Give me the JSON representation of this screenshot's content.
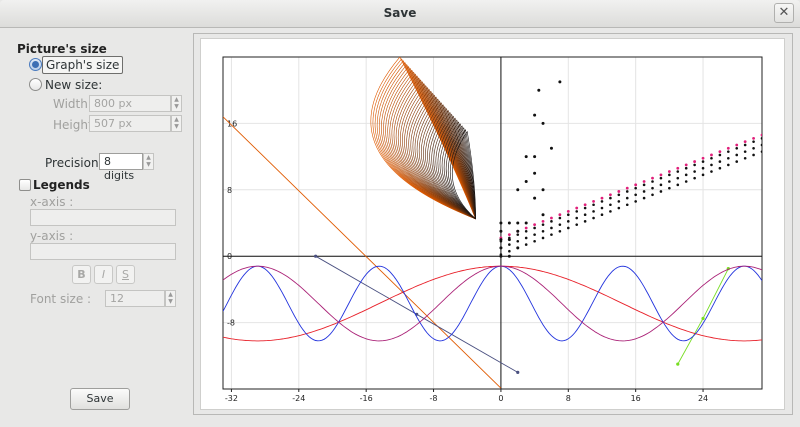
{
  "window": {
    "title": "Save",
    "close_glyph": "✕"
  },
  "picture_size": {
    "heading": "Picture's size",
    "graphs_size_label": "Graph's size",
    "new_size_label": "New size:",
    "width_label": "Width:",
    "width_value": "800 px",
    "height_label": "Height:",
    "height_value": "507 px"
  },
  "precision": {
    "label": "Precision :",
    "value": "8 digits"
  },
  "legends": {
    "label": "Legends",
    "x_axis_label": "x-axis :",
    "x_axis_value": "",
    "y_axis_label": "y-axis :",
    "y_axis_value": "",
    "bold_label": "B",
    "italic_label": "I",
    "underline_label": "S",
    "font_size_label": "Font size :",
    "font_size_value": "12"
  },
  "save_button_label": "Save",
  "colors": {
    "accent": "#3c6eb4",
    "orange": "#e05a00",
    "red": "#e8212a",
    "blue": "#2233dd",
    "magenta": "#aa2277",
    "pink": "#e0207a",
    "green": "#77dd22",
    "navy": "#4a5080"
  },
  "chart_data": {
    "type": "line",
    "title": "",
    "xlabel": "",
    "ylabel": "",
    "xlim": [
      -33,
      31
    ],
    "ylim": [
      -16,
      24
    ],
    "grid": true,
    "x_ticks": [
      -32,
      -24,
      -16,
      -8,
      0,
      8,
      16,
      24
    ],
    "x_tick_labels": [
      "-32",
      "-24",
      "-16",
      "-8",
      "0",
      "8",
      "16",
      "24"
    ],
    "y_ticks": [
      -8,
      0,
      8,
      16
    ],
    "y_tick_labels": [
      "-8",
      "0",
      "8",
      "16"
    ],
    "series": [
      {
        "kind": "line",
        "color": "#e05a00",
        "points": [
          [
            -33,
            16.8
          ],
          [
            0,
            -15.9
          ]
        ]
      },
      {
        "kind": "polyline-markers",
        "color": "#4a5080",
        "points": [
          [
            -22,
            0
          ],
          [
            -10,
            -7
          ],
          [
            2,
            -14
          ]
        ]
      },
      {
        "kind": "polyline-markers",
        "color": "#77dd22",
        "points": [
          [
            21,
            -13
          ],
          [
            24,
            -7.5
          ],
          [
            27,
            -1.5
          ]
        ]
      },
      {
        "kind": "function",
        "color": "#e8212a",
        "fn": "red",
        "note": "y = 9.6 cos(x/13) - 1.8 style envelope"
      },
      {
        "kind": "function",
        "color": "#2233dd",
        "fn": "blue"
      },
      {
        "kind": "function",
        "color": "#aa2277",
        "fn": "magenta"
      },
      {
        "kind": "scatter",
        "color": "#111111",
        "fn": "black-rows"
      },
      {
        "kind": "scatter",
        "color": "#e0207a",
        "fn": "pink-row"
      },
      {
        "kind": "scatter",
        "color": "#111111",
        "points": [
          [
            0,
            0
          ],
          [
            0,
            1
          ],
          [
            0,
            2
          ],
          [
            0,
            3
          ],
          [
            0,
            4
          ],
          [
            1,
            0
          ],
          [
            1,
            2
          ],
          [
            1,
            4
          ],
          [
            2,
            1
          ],
          [
            2,
            3
          ],
          [
            2,
            4
          ],
          [
            3,
            4
          ],
          [
            2,
            8
          ],
          [
            3,
            9
          ],
          [
            3,
            12
          ],
          [
            4,
            7
          ],
          [
            4,
            10
          ],
          [
            4,
            12
          ],
          [
            4,
            17
          ],
          [
            5,
            5
          ],
          [
            5,
            8
          ],
          [
            5,
            16
          ],
          [
            6,
            13
          ],
          [
            7,
            21
          ],
          [
            4.5,
            20
          ]
        ]
      },
      {
        "kind": "family",
        "color": "#e05a00",
        "fn": "fan",
        "note": "curve family above origin"
      }
    ]
  }
}
